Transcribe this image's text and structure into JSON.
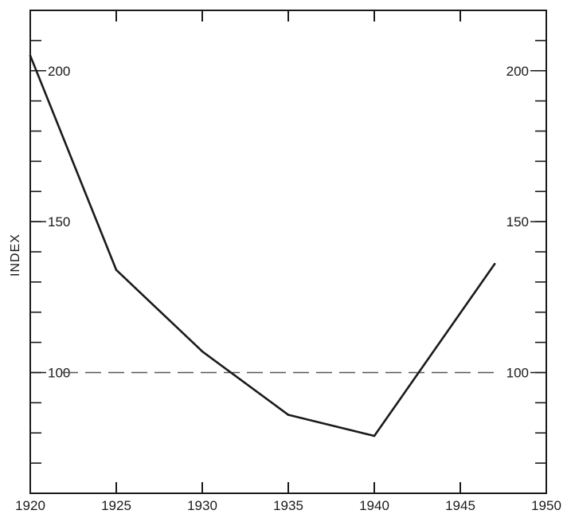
{
  "chart_data": {
    "type": "line",
    "title": "",
    "xlabel": "",
    "ylabel": "INDEX",
    "xlim": [
      1920,
      1950
    ],
    "ylim": [
      60,
      220
    ],
    "x_ticks": [
      1920,
      1925,
      1930,
      1935,
      1940,
      1945,
      1950
    ],
    "x_tick_labels": [
      "1920",
      "1925",
      "1930",
      "1935",
      "1940",
      "1945",
      "1950"
    ],
    "y_labeled_ticks": [
      100,
      150,
      200
    ],
    "y_tick_labels": [
      "100",
      "150",
      "200"
    ],
    "y_minor_tick_step": 10,
    "right_axis_mirrored": true,
    "grid": false,
    "legend": "none",
    "series": [
      {
        "style": "solid",
        "color": "#1a1a1a",
        "x": [
          1920,
          1925,
          1930,
          1935,
          1940,
          1947
        ],
        "y": [
          205,
          134,
          107,
          86,
          79,
          136
        ]
      }
    ],
    "reference_lines": [
      {
        "axis": "y",
        "value": 100,
        "style": "dashed",
        "color": "#555555"
      }
    ]
  }
}
